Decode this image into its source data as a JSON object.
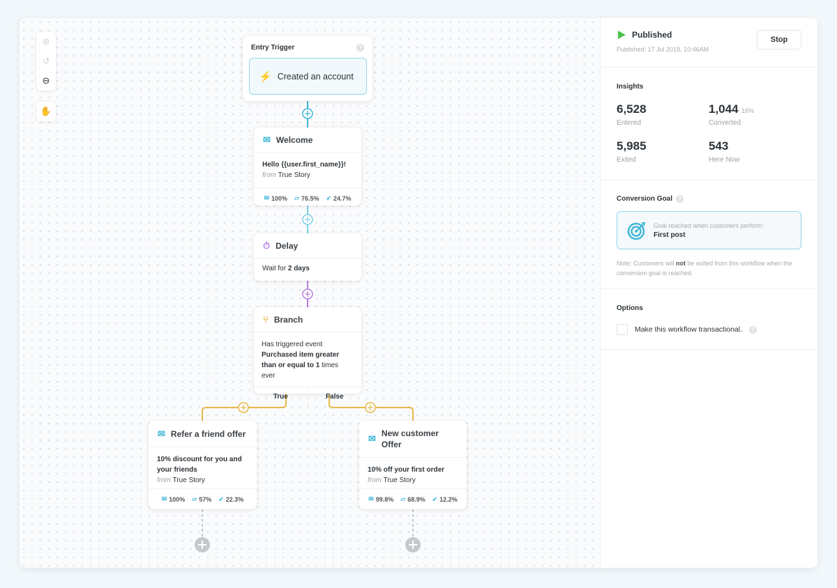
{
  "colors": {
    "accent": "#3fb7d6",
    "purple": "#b67fe0",
    "branch": "#e8b84a",
    "published": "#4cc24a"
  },
  "toolbar": {
    "icons": [
      "zoom-in-icon",
      "undo-icon",
      "zoom-out-icon",
      "hand-icon"
    ]
  },
  "entry": {
    "label": "Entry Trigger",
    "trigger": "Created an account"
  },
  "welcome": {
    "title": "Welcome",
    "subject": "Hello {{user.first_name}}!",
    "from_word": "from",
    "sender": "True Story",
    "delivered": "100%",
    "opened": "76.5%",
    "clicked": "24.7%"
  },
  "delay": {
    "title": "Delay",
    "text_pre": "Wait for",
    "duration": "2 days"
  },
  "branch": {
    "title": "Branch",
    "line1": "Has triggered event",
    "line2": "Purchased item greater than or equal to",
    "count": "1",
    "line3": "times ever",
    "true_label": "True",
    "false_label": "False"
  },
  "refer": {
    "title": "Refer a friend offer",
    "subject": "10% discount for you and your friends",
    "from_word": "from",
    "sender": "True Story",
    "delivered": "100%",
    "opened": "57%",
    "clicked": "22.3%"
  },
  "newcust": {
    "title": "New customer Offer",
    "subject": "10% off your first order",
    "from_word": "from",
    "sender": "True Story",
    "delivered": "99.8%",
    "opened": "68.9%",
    "clicked": "12.2%"
  },
  "sidebar": {
    "status": "Published",
    "published_at": "Published: 17 Jul 2018, 10:46AM",
    "stop_label": "Stop",
    "insights_title": "Insights",
    "entered": "6,528",
    "entered_label": "Entered",
    "converted": "1,044",
    "converted_pct": "16%",
    "converted_label": "Converted",
    "exited": "5,985",
    "exited_label": "Exited",
    "here_now": "543",
    "here_now_label": "Here Now",
    "goal_title": "Conversion Goal",
    "goal_desc": "Goal reached when customers perform:",
    "goal_event": "First post",
    "note_pre": "Note: Customers will",
    "note_bold": "not",
    "note_post": "be exited from this workflow when the conversion goal is reached.",
    "options_title": "Options",
    "transactional_label": "Make this workflow transactional.",
    "transactional_checked": false
  }
}
